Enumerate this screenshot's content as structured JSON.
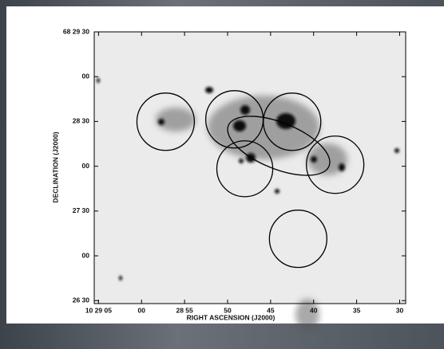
{
  "chart_data": {
    "type": "scatter",
    "xlabel": "RIGHT ASCENSION (J2000)",
    "ylabel": "DECLINATION (J2000)",
    "xlim": [
      65.5,
      29.3
    ],
    "ylim": [
      28,
      210
    ],
    "xticks": [
      {
        "value": 65,
        "label": "10 29 05"
      },
      {
        "value": 60,
        "label": "00"
      },
      {
        "value": 55,
        "label": "28 55"
      },
      50,
      45,
      40,
      35,
      30
    ],
    "yticks": [
      {
        "value": 210,
        "label": "68 29 30"
      },
      {
        "value": 180,
        "label": "00"
      },
      {
        "value": 150,
        "label": "28 30"
      },
      {
        "value": 120,
        "label": "00"
      },
      {
        "value": 90,
        "label": "27 30"
      },
      {
        "value": 60,
        "label": "00"
      },
      {
        "value": 30,
        "label": "26 30"
      }
    ],
    "x": [
      57.2,
      49.2,
      42.5,
      48.0,
      37.5,
      41.8
    ],
    "y": [
      149.8,
      151.4,
      149.8,
      118.3,
      121,
      71.4
    ],
    "sizes": [
      19.2,
      19.2,
      19.2,
      18.7,
      19.2,
      19.2
    ],
    "color": "#000000"
  }
}
